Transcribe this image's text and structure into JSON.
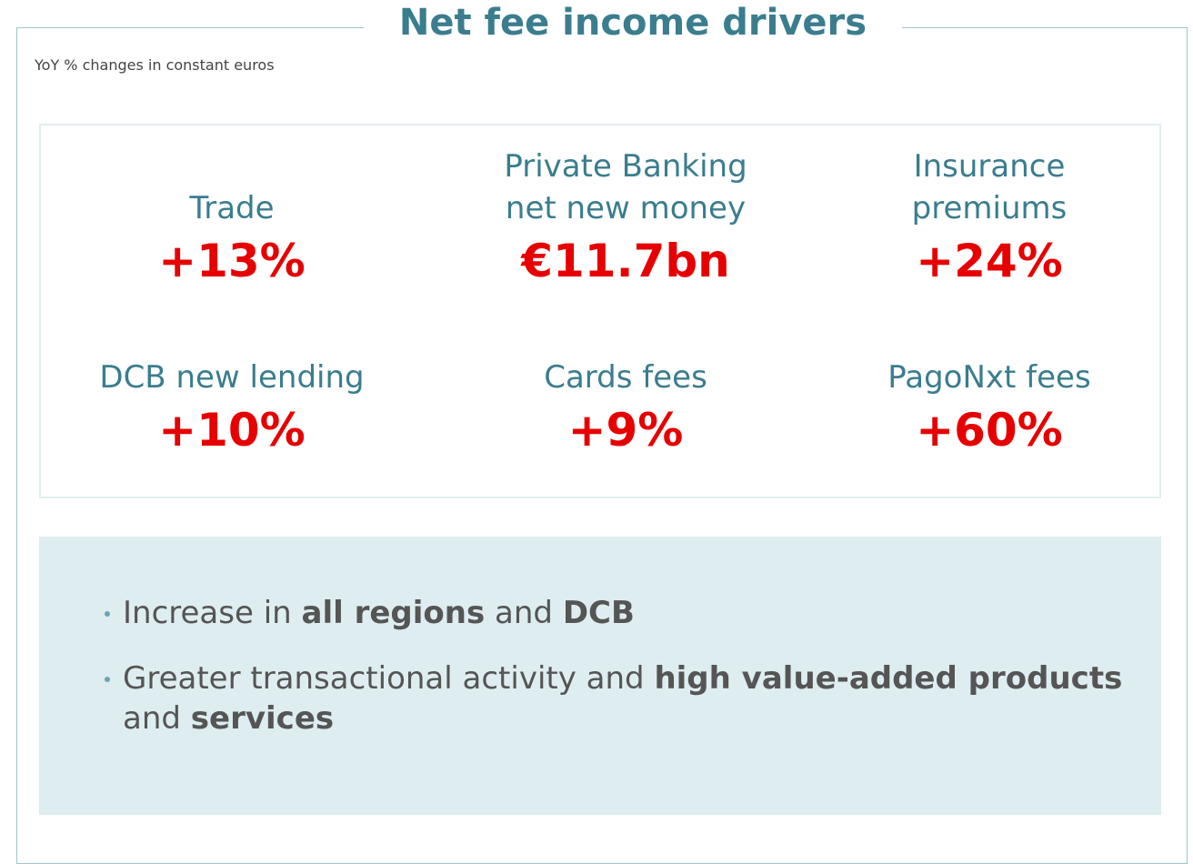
{
  "header": {
    "title": "Net fee income drivers",
    "subtitle": "YoY % changes in constant euros"
  },
  "metrics": [
    {
      "label": "Trade",
      "value": "+13%"
    },
    {
      "label": "Private Banking net new money",
      "value": "€11.7bn"
    },
    {
      "label": "Insurance premiums",
      "value": "+24%"
    },
    {
      "label": "DCB new lending",
      "value": "+10%"
    },
    {
      "label": "Cards fees",
      "value": "+9%"
    },
    {
      "label": "PagoNxt fees",
      "value": "+60%"
    }
  ],
  "bullets": [
    [
      {
        "text": "Increase in ",
        "bold": false
      },
      {
        "text": "all regions",
        "bold": true
      },
      {
        "text": " and ",
        "bold": false
      },
      {
        "text": "DCB",
        "bold": true
      }
    ],
    [
      {
        "text": "Greater transactional activity and ",
        "bold": false
      },
      {
        "text": "high value-added products",
        "bold": true
      },
      {
        "text": " and ",
        "bold": false
      },
      {
        "text": "services",
        "bold": true
      }
    ]
  ]
}
